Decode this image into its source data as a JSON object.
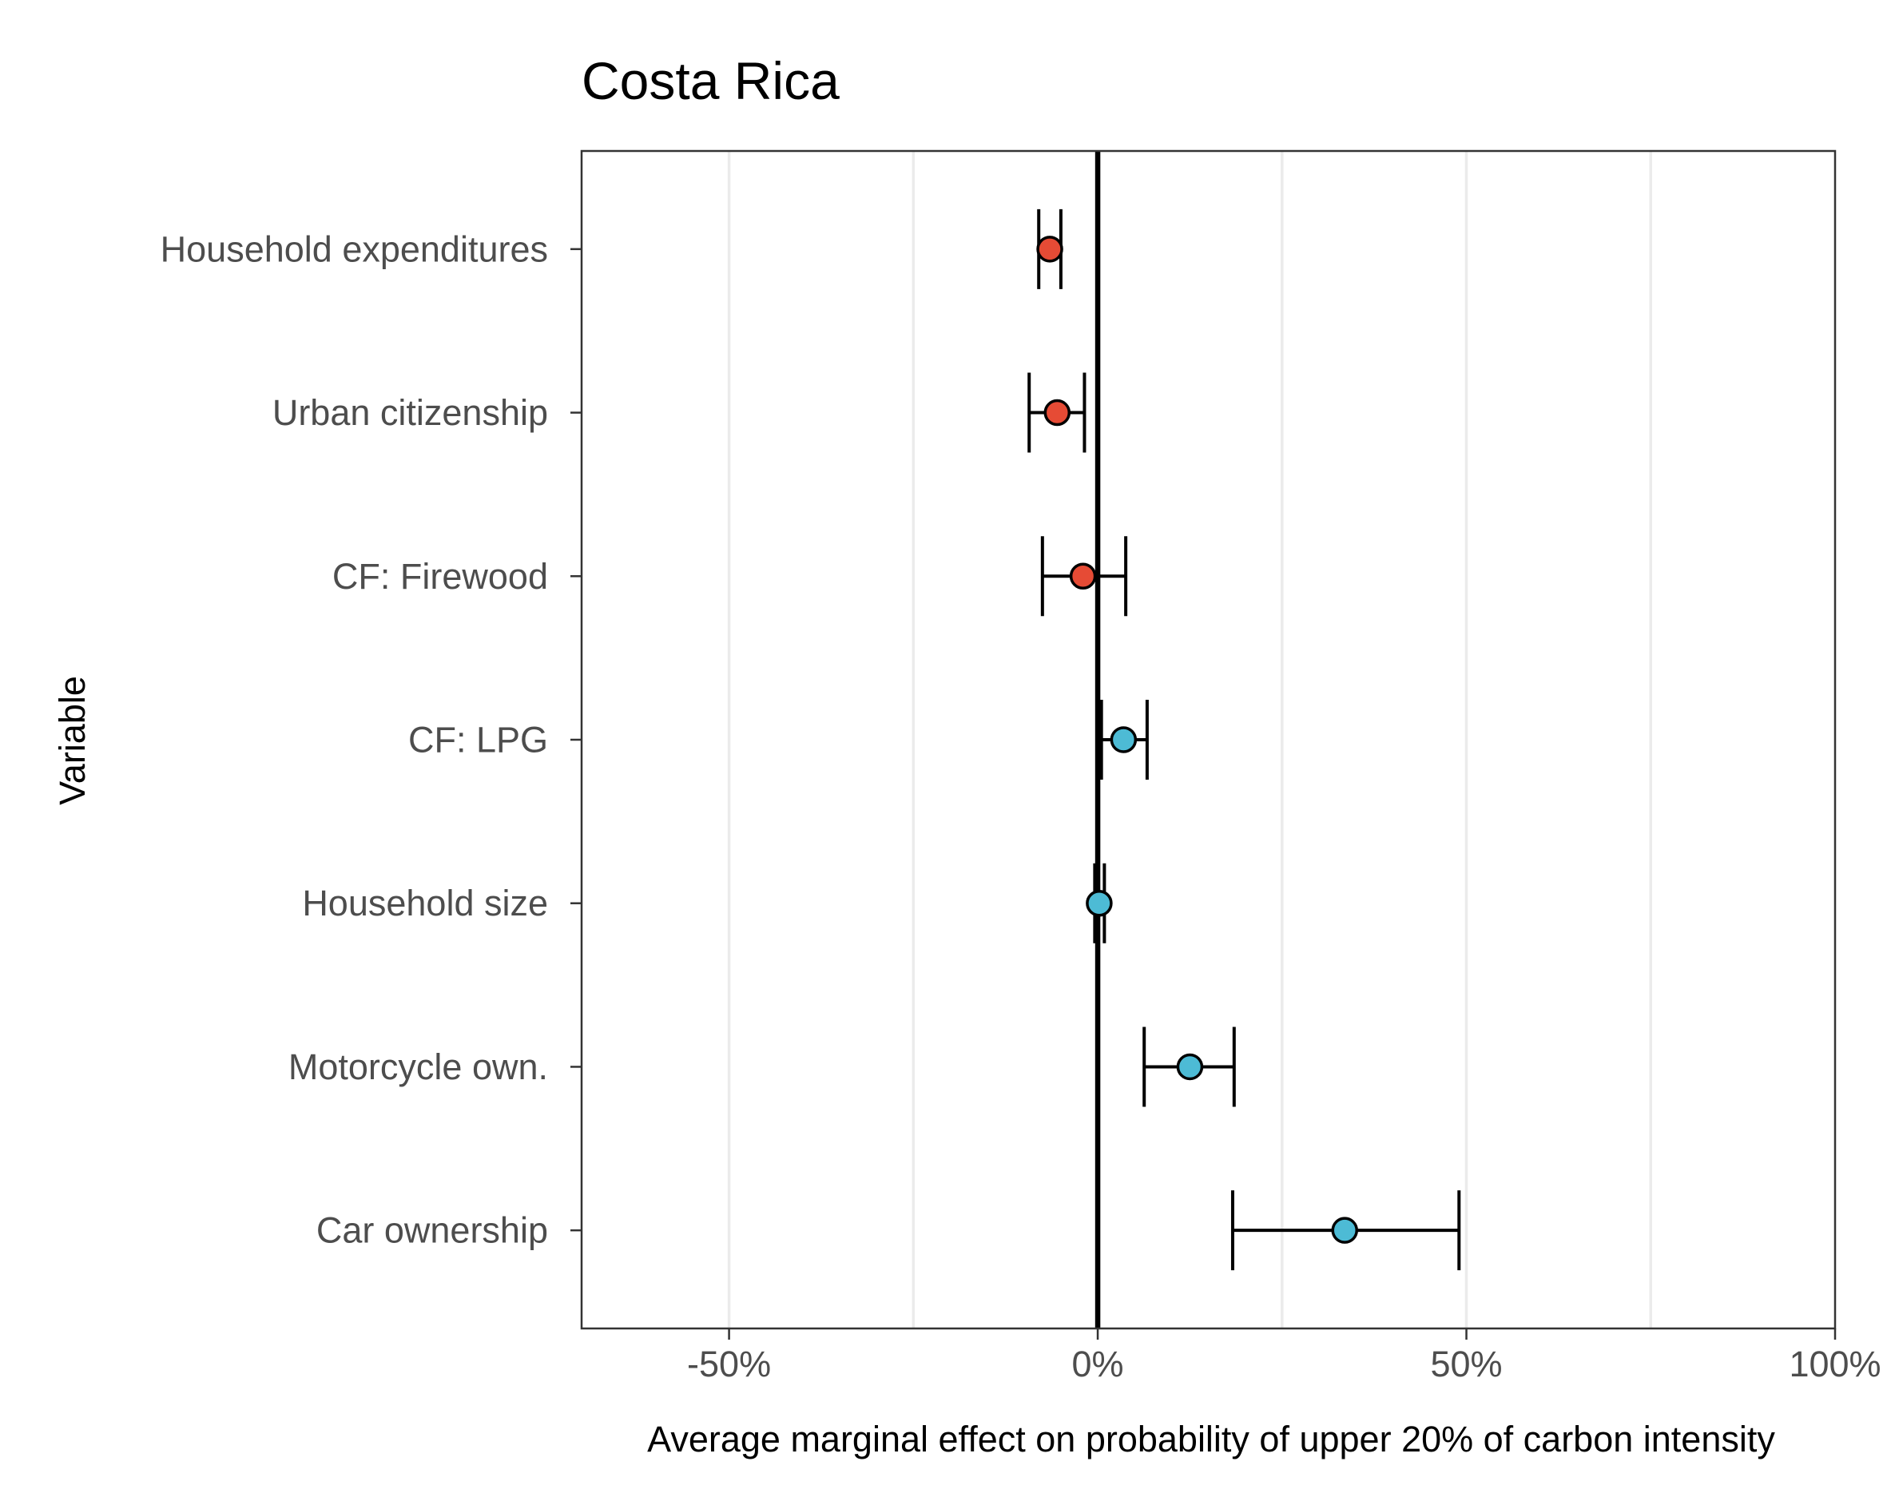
{
  "chart_data": {
    "type": "dot-errorbar",
    "title": "Costa Rica",
    "xlabel": "Average marginal effect on probability of upper 20% of carbon intensity",
    "ylabel": "Variable",
    "xlim": [
      -70,
      100
    ],
    "xticks": [
      {
        "value": -50,
        "label": "-50%"
      },
      {
        "value": 0,
        "label": "0%"
      },
      {
        "value": 50,
        "label": "50%"
      },
      {
        "value": 100,
        "label": "100%"
      }
    ],
    "minor_gridlines": [
      -25,
      25,
      75
    ],
    "reference_line": 0,
    "grid": true,
    "colors": {
      "negative": "#e64b35",
      "positive": "#4dbbd5"
    },
    "variables": [
      {
        "label": "Household expenditures",
        "estimate": -6.5,
        "lower": -8.0,
        "upper": -5.0,
        "sign": "negative"
      },
      {
        "label": "Urban citizenship",
        "estimate": -5.5,
        "lower": -9.3,
        "upper": -1.8,
        "sign": "negative"
      },
      {
        "label": "CF: Firewood",
        "estimate": -2.0,
        "lower": -7.5,
        "upper": 3.8,
        "sign": "negative"
      },
      {
        "label": "CF: LPG",
        "estimate": 3.5,
        "lower": 0.5,
        "upper": 6.7,
        "sign": "positive"
      },
      {
        "label": "Household size",
        "estimate": 0.2,
        "lower": -0.4,
        "upper": 0.9,
        "sign": "positive"
      },
      {
        "label": "Motorcycle own.",
        "estimate": 12.5,
        "lower": 6.3,
        "upper": 18.5,
        "sign": "positive"
      },
      {
        "label": "Car ownership",
        "estimate": 33.5,
        "lower": 18.3,
        "upper": 49.0,
        "sign": "positive"
      }
    ]
  }
}
